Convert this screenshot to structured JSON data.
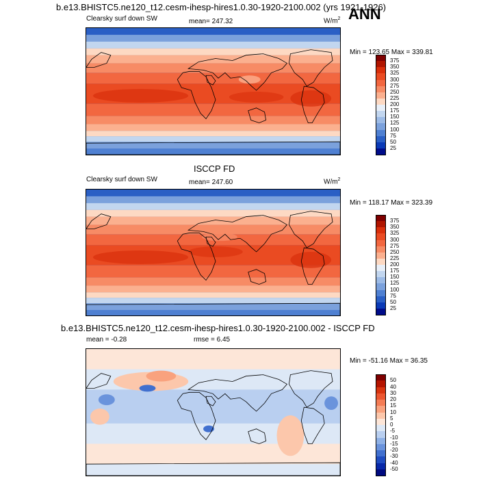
{
  "header": {
    "title": "b.e13.BHISTC5.ne120_t12.cesm-ihesp-hires1.0.30-1920-2100.002 (yrs 1921-1926)",
    "season": "ANN"
  },
  "panels": [
    {
      "name": "model",
      "field_label": "Clearsky surf down SW",
      "mean_text": "mean= 247.32",
      "units": "W/m",
      "units_sup": "2",
      "minmax_text": "Min = 123.65 Max = 339.81",
      "colorbar_labels": [
        "375",
        "350",
        "325",
        "300",
        "275",
        "250",
        "225",
        "200",
        "175",
        "150",
        "125",
        "100",
        "75",
        "50",
        "25"
      ],
      "colorbar_colors": [
        "#7f0000",
        "#b01500",
        "#d92f0b",
        "#ea4b22",
        "#f26740",
        "#f78b65",
        "#fbb08f",
        "#fdd9c3",
        "#e8eff8",
        "#c2d6ef",
        "#9dbbe6",
        "#7ba1dc",
        "#4f80d2",
        "#2a5fc5",
        "#0a3ab6",
        "#000c8a"
      ]
    },
    {
      "name": "obs",
      "section_title": "ISCCP FD",
      "field_label": "Clearsky surf down SW",
      "mean_text": "mean= 247.60",
      "units": "W/m",
      "units_sup": "2",
      "minmax_text": "Min = 118.17 Max = 323.39",
      "colorbar_labels": [
        "375",
        "350",
        "325",
        "300",
        "275",
        "250",
        "225",
        "200",
        "175",
        "150",
        "125",
        "100",
        "75",
        "50",
        "25"
      ],
      "colorbar_colors": [
        "#7f0000",
        "#b01500",
        "#d92f0b",
        "#ea4b22",
        "#f26740",
        "#f78b65",
        "#fbb08f",
        "#fdd9c3",
        "#e8eff8",
        "#c2d6ef",
        "#9dbbe6",
        "#7ba1dc",
        "#4f80d2",
        "#2a5fc5",
        "#0a3ab6",
        "#000c8a"
      ]
    },
    {
      "name": "diff",
      "section_title": "b.e13.BHISTC5.ne120_t12.cesm-ihesp-hires1.0.30-1920-2100.002 - ISCCP FD",
      "mean_text": "mean =  -0.28",
      "rmse_text": "rmse =   6.45",
      "minmax_text": "Min = -51.16 Max =  36.35",
      "colorbar_labels": [
        "50",
        "40",
        "30",
        "20",
        "15",
        "10",
        "5",
        "0",
        "-5",
        "-10",
        "-15",
        "-20",
        "-30",
        "-40",
        "-50"
      ],
      "colorbar_colors": [
        "#7f0000",
        "#b41400",
        "#d8340f",
        "#ec5630",
        "#f47c55",
        "#f9a27e",
        "#fcc7ab",
        "#fde6d8",
        "#dde8f6",
        "#b9cff0",
        "#8fb1e6",
        "#6a93dc",
        "#4170cf",
        "#1f4cc0",
        "#0828a8",
        "#000a80"
      ]
    }
  ]
}
